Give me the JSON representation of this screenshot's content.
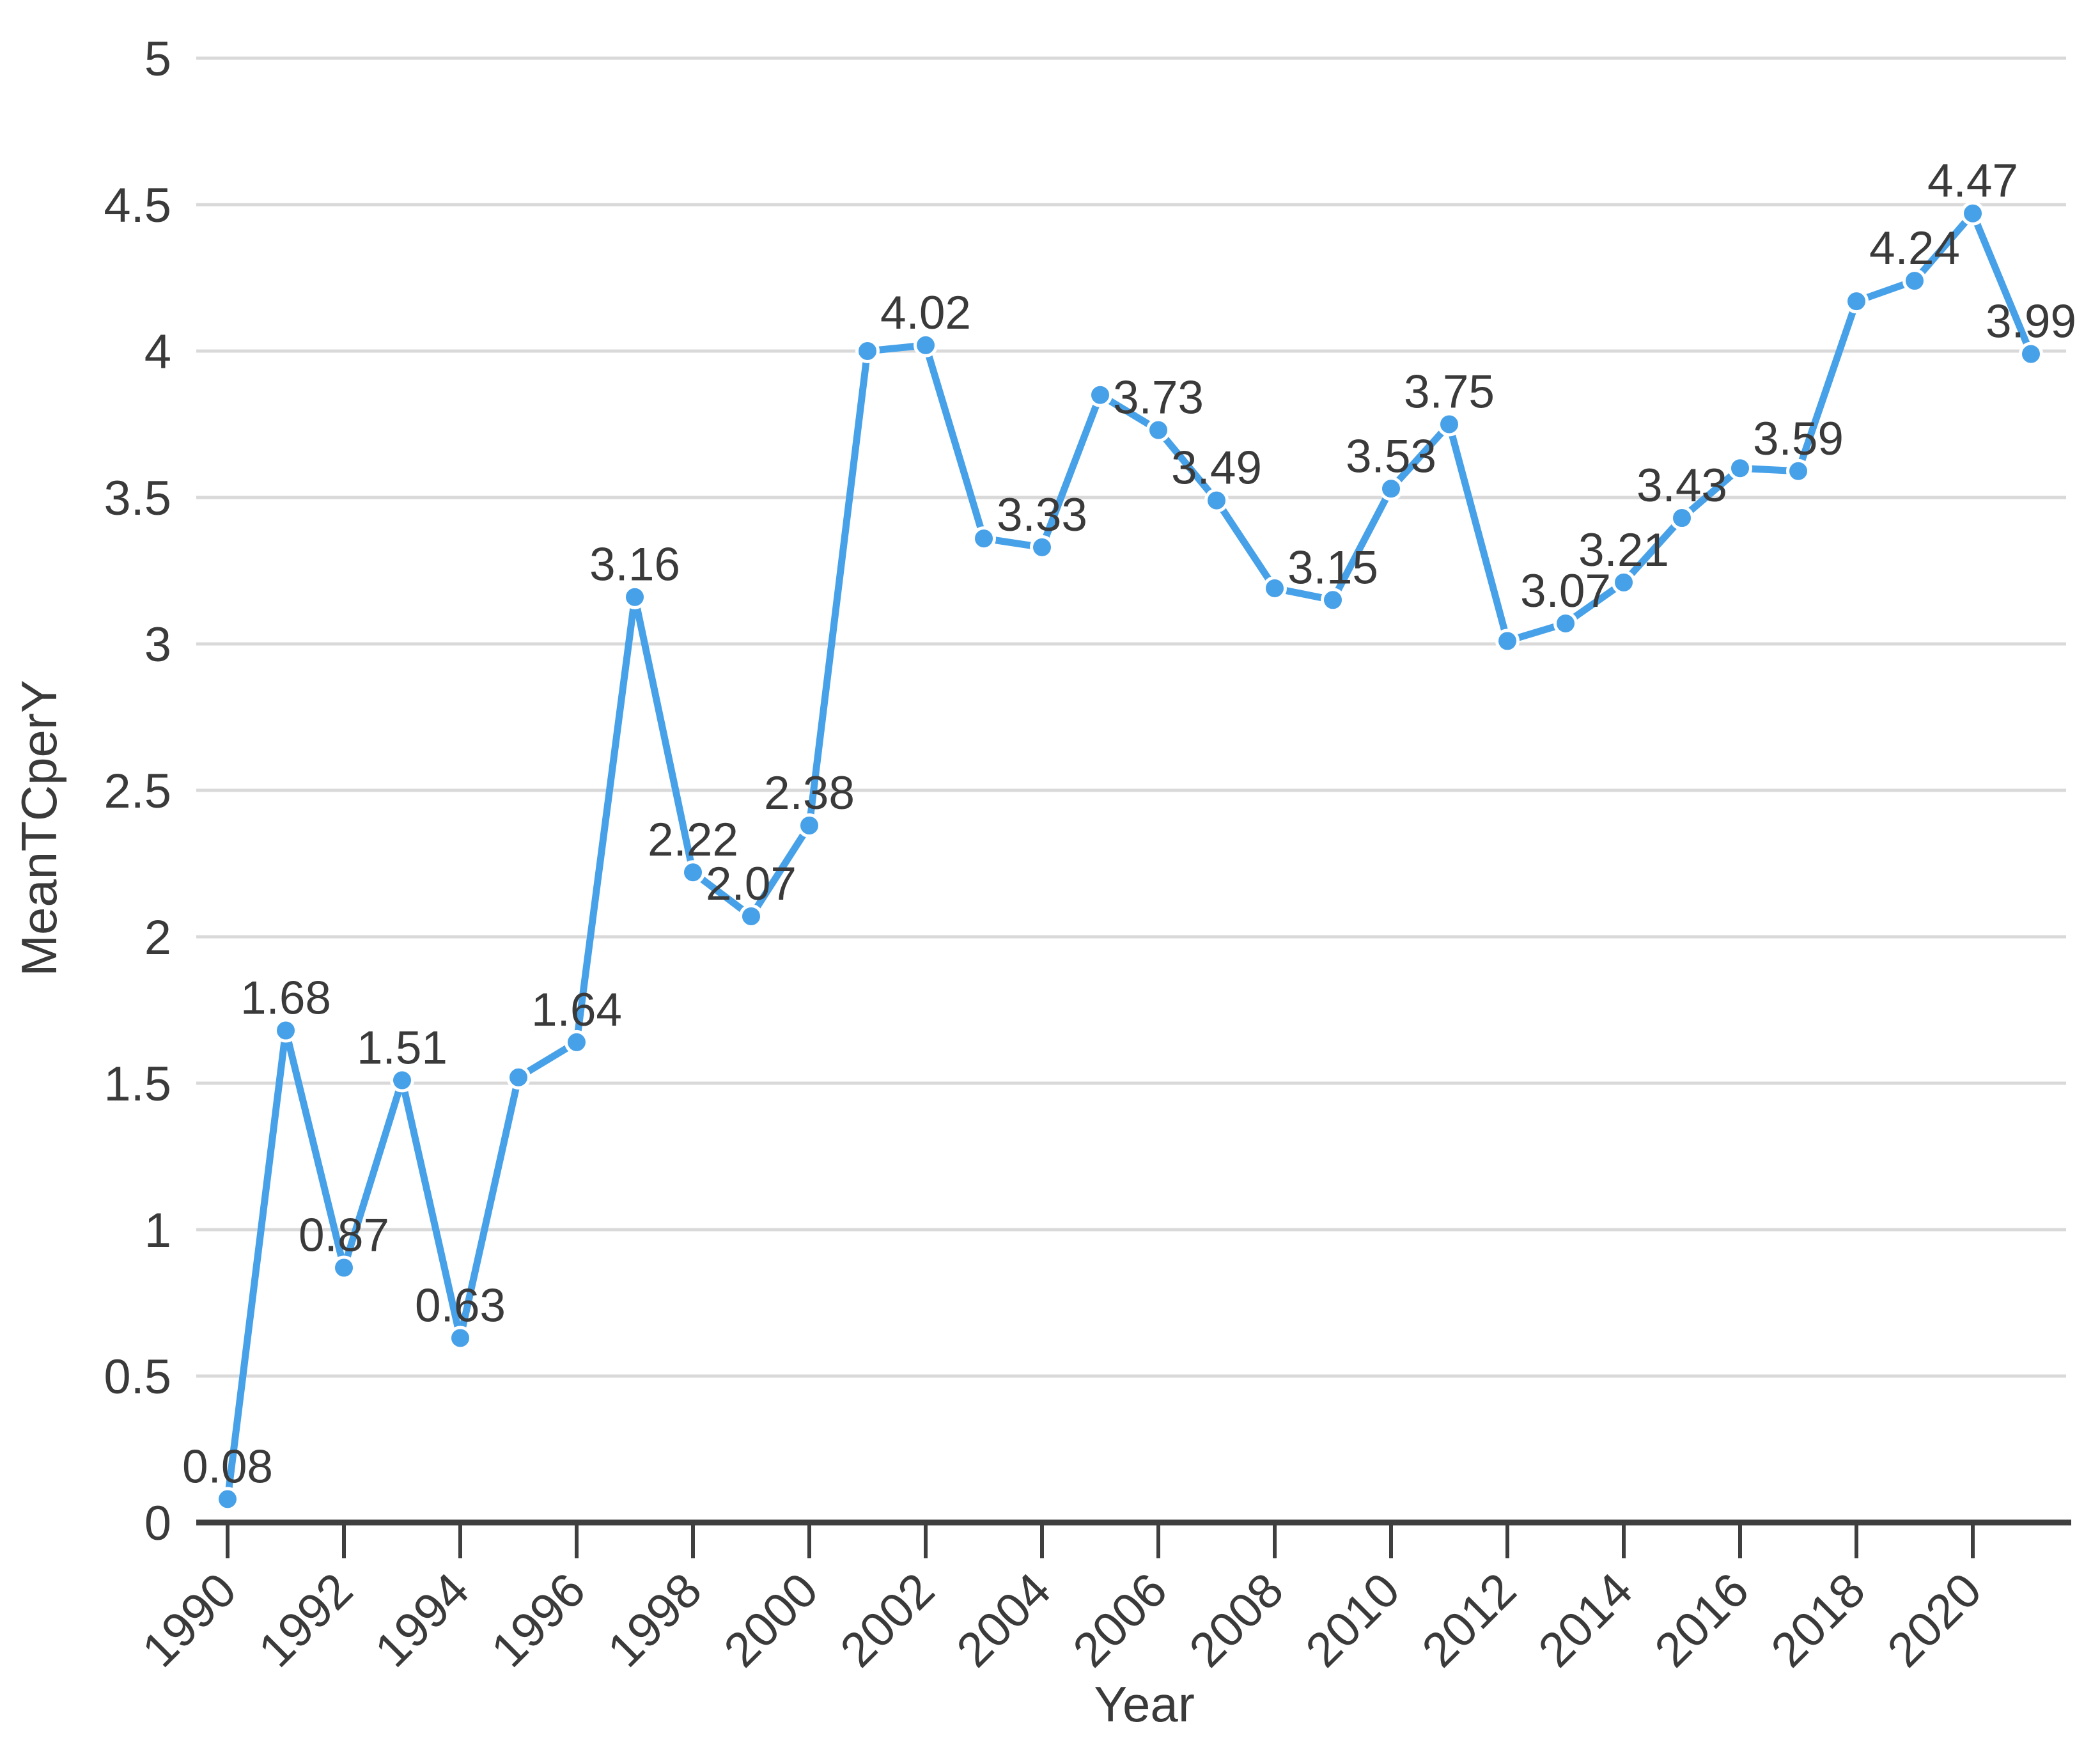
{
  "chart_data": {
    "type": "line",
    "title": "",
    "xlabel": "Year",
    "ylabel": "MeanTCperY",
    "x": [
      1990,
      1991,
      1992,
      1993,
      1994,
      1995,
      1996,
      1997,
      1998,
      1999,
      2000,
      2001,
      2002,
      2003,
      2004,
      2005,
      2006,
      2007,
      2008,
      2009,
      2010,
      2011,
      2012,
      2013,
      2014,
      2015,
      2016,
      2017,
      2018,
      2019,
      2020,
      2021
    ],
    "values": [
      0.08,
      1.68,
      0.87,
      1.51,
      0.63,
      1.52,
      1.64,
      3.16,
      2.22,
      2.07,
      2.38,
      4.0,
      4.02,
      3.36,
      3.33,
      3.85,
      3.73,
      3.49,
      3.19,
      3.15,
      3.53,
      3.75,
      3.01,
      3.07,
      3.21,
      3.43,
      3.6,
      3.59,
      4.17,
      4.24,
      4.47,
      3.99
    ],
    "point_labels": [
      "0.08",
      "1.68",
      "0.87",
      "1.51",
      "0.63",
      null,
      "1.64",
      "3.16",
      "2.22",
      "2.07",
      "2.38",
      null,
      "4.02",
      null,
      "3.33",
      null,
      "3.73",
      "3.49",
      null,
      "3.15",
      "3.53",
      "3.75",
      null,
      "3.07",
      "3.21",
      "3.43",
      null,
      "3.59",
      null,
      "4.24",
      "4.47",
      "3.99"
    ],
    "ylim": [
      0,
      5
    ],
    "y_ticks": [
      0,
      0.5,
      1,
      1.5,
      2,
      2.5,
      3,
      3.5,
      4,
      4.5,
      5
    ],
    "y_tick_labels": [
      "0",
      "0.5",
      "1",
      "1.5",
      "2",
      "2.5",
      "3",
      "3.5",
      "4",
      "4.5",
      "5"
    ],
    "x_ticks": [
      1990,
      1992,
      1994,
      1996,
      1998,
      2000,
      2002,
      2004,
      2006,
      2008,
      2010,
      2012,
      2014,
      2016,
      2018,
      2020
    ],
    "x_tick_labels": [
      "1990",
      "1992",
      "1994",
      "1996",
      "1998",
      "2000",
      "2002",
      "2004",
      "2006",
      "2008",
      "2010",
      "2012",
      "2014",
      "2016",
      "2018",
      "2020"
    ],
    "grid": "horizontal-only",
    "legend": "none",
    "series_color": "#47a1e8",
    "marker_halo_color": "#ffffff",
    "grid_color": "#d9d9d9",
    "axis_color": "#3f3f3f",
    "text_color": "#3a3a3a"
  }
}
